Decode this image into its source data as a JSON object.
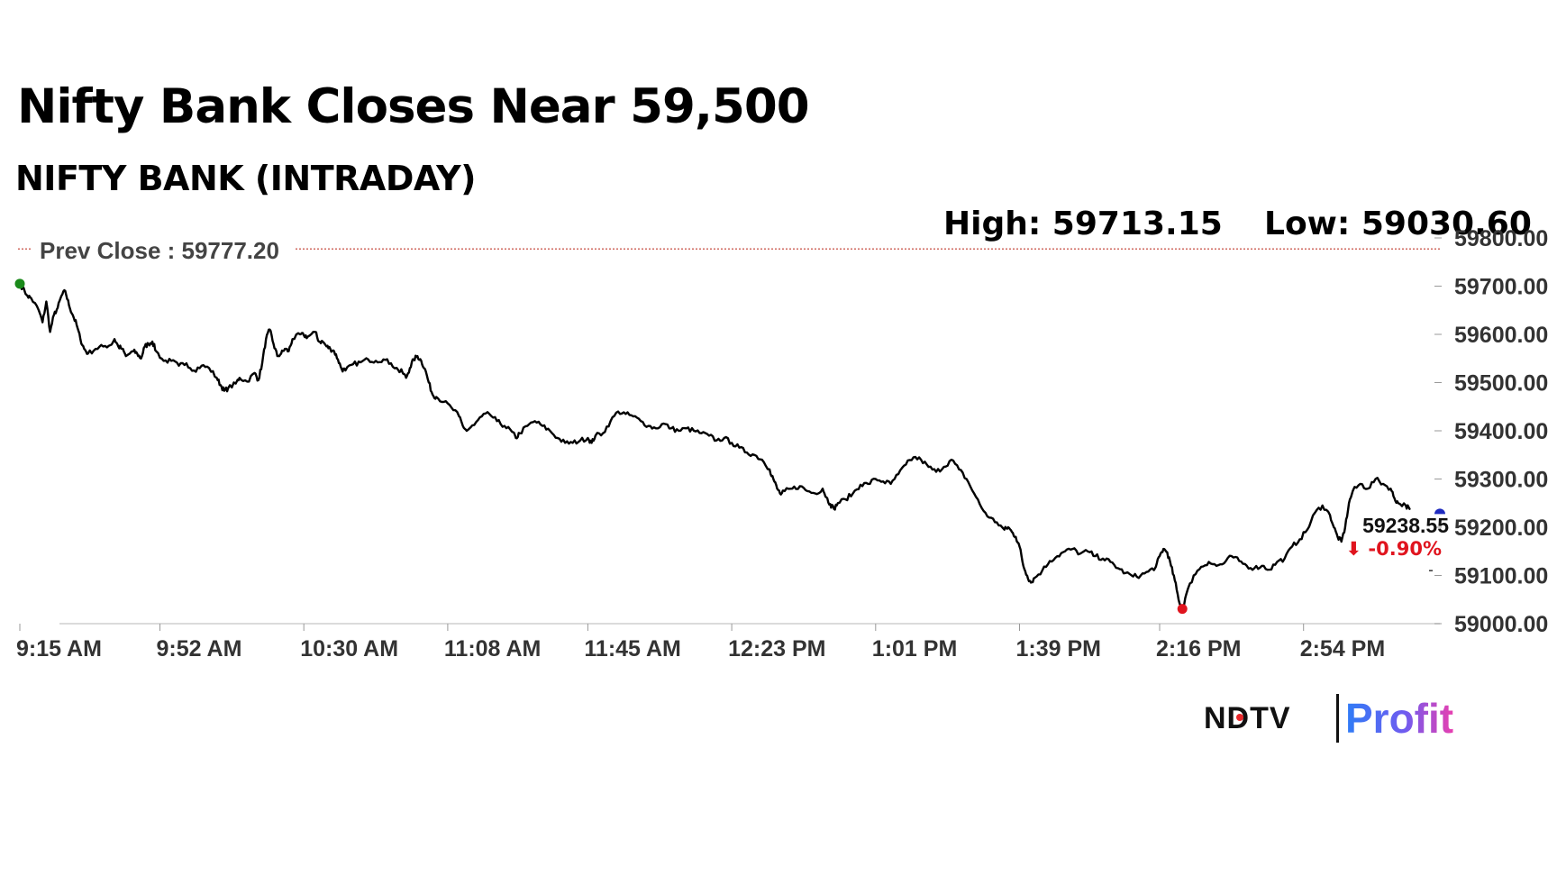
{
  "header": {
    "title": "Nifty Bank Closes Near 59,500",
    "subtitle": "NIFTY BANK (INTRADAY)"
  },
  "stats": {
    "high": "High: 59713.15",
    "low": "Low: 59030.60"
  },
  "prev_close": {
    "label": "Prev Close : 59777.20",
    "value": 59777.2,
    "color": "#c0392b"
  },
  "last": {
    "value_label": "59238.55",
    "change_label": "⬇ -0.90%",
    "change_color": "#e0141e",
    "marker_color": "#1f2bbf"
  },
  "markers": {
    "open_color": "#1a8a1a",
    "low_color": "#e0141e"
  },
  "brand": {
    "ndtv": "NDTV",
    "profit": "Profit"
  },
  "chart_data": {
    "type": "line",
    "title": "Nifty Bank Closes Near 59,500",
    "subtitle": "NIFTY BANK (INTRADAY)",
    "xlabel": "",
    "ylabel": "",
    "grid": false,
    "legend": "none",
    "ylim": [
      59000,
      59800
    ],
    "x_range": [
      0,
      375
    ],
    "y_ticks": [
      59800,
      59700,
      59600,
      59500,
      59400,
      59300,
      59200,
      59100,
      59000
    ],
    "y_tick_labels": [
      "59800.00",
      "59700.00",
      "59600.00",
      "59500.00",
      "59400.00",
      "59300.00",
      "59200.00",
      "59100.00",
      "59000.00"
    ],
    "x_ticks": [
      0,
      37,
      75,
      113,
      150,
      188,
      226,
      264,
      301,
      339
    ],
    "x_tick_labels": [
      "9:15 AM",
      "9:52 AM",
      "10:30 AM",
      "11:08 AM",
      "11:45 AM",
      "12:23 PM",
      "1:01 PM",
      "1:39 PM",
      "2:16 PM",
      "2:54 PM"
    ],
    "series": [
      {
        "name": "NIFTY BANK",
        "points": [
          [
            0,
            59705
          ],
          [
            2,
            59680
          ],
          [
            3,
            59675
          ],
          [
            5,
            59650
          ],
          [
            6,
            59625
          ],
          [
            7,
            59668
          ],
          [
            8,
            59605
          ],
          [
            9,
            59640
          ],
          [
            10,
            59655
          ],
          [
            11,
            59680
          ],
          [
            12,
            59690
          ],
          [
            13,
            59660
          ],
          [
            14,
            59640
          ],
          [
            15,
            59620
          ],
          [
            16,
            59590
          ],
          [
            17,
            59570
          ],
          [
            18,
            59560
          ],
          [
            20,
            59570
          ],
          [
            22,
            59575
          ],
          [
            24,
            59578
          ],
          [
            25,
            59590
          ],
          [
            26,
            59575
          ],
          [
            27,
            59570
          ],
          [
            28,
            59555
          ],
          [
            30,
            59565
          ],
          [
            31,
            59560
          ],
          [
            32,
            59550
          ],
          [
            33,
            59575
          ],
          [
            34,
            59580
          ],
          [
            35,
            59585
          ],
          [
            36,
            59565
          ],
          [
            38,
            59545
          ],
          [
            40,
            59545
          ],
          [
            42,
            59535
          ],
          [
            44,
            59540
          ],
          [
            46,
            59525
          ],
          [
            48,
            59535
          ],
          [
            50,
            59530
          ],
          [
            52,
            59510
          ],
          [
            53,
            59495
          ],
          [
            54,
            59483
          ],
          [
            55,
            59488
          ],
          [
            57,
            59498
          ],
          [
            58,
            59510
          ],
          [
            60,
            59502
          ],
          [
            62,
            59520
          ],
          [
            63,
            59505
          ],
          [
            64,
            59540
          ],
          [
            65,
            59590
          ],
          [
            66,
            59610
          ],
          [
            67,
            59580
          ],
          [
            68,
            59555
          ],
          [
            69,
            59560
          ],
          [
            70,
            59570
          ],
          [
            71,
            59565
          ],
          [
            72,
            59590
          ],
          [
            74,
            59600
          ],
          [
            75,
            59598
          ],
          [
            76,
            59595
          ],
          [
            78,
            59605
          ],
          [
            79,
            59585
          ],
          [
            80,
            59585
          ],
          [
            81,
            59575
          ],
          [
            82,
            59570
          ],
          [
            83,
            59565
          ],
          [
            84,
            59548
          ],
          [
            85,
            59528
          ],
          [
            86,
            59525
          ],
          [
            88,
            59538
          ],
          [
            90,
            59542
          ],
          [
            92,
            59548
          ],
          [
            94,
            59545
          ],
          [
            96,
            59548
          ],
          [
            98,
            59540
          ],
          [
            100,
            59525
          ],
          [
            101,
            59522
          ],
          [
            102,
            59510
          ],
          [
            103,
            59530
          ],
          [
            104,
            59548
          ],
          [
            105,
            59555
          ],
          [
            106,
            59545
          ],
          [
            107,
            59528
          ],
          [
            108,
            59500
          ],
          [
            109,
            59475
          ],
          [
            110,
            59470
          ],
          [
            112,
            59460
          ],
          [
            114,
            59448
          ],
          [
            116,
            59430
          ],
          [
            117,
            59410
          ],
          [
            118,
            59400
          ],
          [
            120,
            59412
          ],
          [
            122,
            59430
          ],
          [
            124,
            59435
          ],
          [
            126,
            59420
          ],
          [
            128,
            59410
          ],
          [
            130,
            59398
          ],
          [
            131,
            59385
          ],
          [
            132,
            59395
          ],
          [
            134,
            59410
          ],
          [
            136,
            59420
          ],
          [
            138,
            59410
          ],
          [
            140,
            59400
          ],
          [
            142,
            59385
          ],
          [
            144,
            59375
          ],
          [
            146,
            59375
          ],
          [
            148,
            59380
          ],
          [
            150,
            59385
          ],
          [
            151,
            59375
          ],
          [
            152,
            59390
          ],
          [
            154,
            59395
          ],
          [
            156,
            59420
          ],
          [
            158,
            59440
          ],
          [
            160,
            59435
          ],
          [
            162,
            59430
          ],
          [
            164,
            59420
          ],
          [
            166,
            59410
          ],
          [
            168,
            59405
          ],
          [
            170,
            59415
          ],
          [
            172,
            59405
          ],
          [
            174,
            59400
          ],
          [
            176,
            59405
          ],
          [
            178,
            59400
          ],
          [
            180,
            59395
          ],
          [
            182,
            59390
          ],
          [
            184,
            59380
          ],
          [
            186,
            59385
          ],
          [
            188,
            59375
          ],
          [
            190,
            59365
          ],
          [
            192,
            59355
          ],
          [
            194,
            59350
          ],
          [
            196,
            59340
          ],
          [
            198,
            59320
          ],
          [
            199,
            59300
          ],
          [
            200,
            59280
          ],
          [
            201,
            59268
          ],
          [
            202,
            59275
          ],
          [
            204,
            59280
          ],
          [
            206,
            59285
          ],
          [
            208,
            59275
          ],
          [
            210,
            59270
          ],
          [
            212,
            59280
          ],
          [
            213,
            59262
          ],
          [
            214,
            59248
          ],
          [
            215,
            59238
          ],
          [
            216,
            59250
          ],
          [
            218,
            59258
          ],
          [
            220,
            59270
          ],
          [
            222,
            59288
          ],
          [
            224,
            59290
          ],
          [
            226,
            59300
          ],
          [
            228,
            59295
          ],
          [
            230,
            59290
          ],
          [
            232,
            59310
          ],
          [
            234,
            59330
          ],
          [
            236,
            59345
          ],
          [
            238,
            59340
          ],
          [
            240,
            59325
          ],
          [
            242,
            59315
          ],
          [
            244,
            59325
          ],
          [
            246,
            59340
          ],
          [
            248,
            59320
          ],
          [
            250,
            59300
          ],
          [
            252,
            59270
          ],
          [
            254,
            59240
          ],
          [
            256,
            59220
          ],
          [
            258,
            59210
          ],
          [
            260,
            59195
          ],
          [
            261,
            59200
          ],
          [
            262,
            59190
          ],
          [
            263,
            59180
          ],
          [
            264,
            59160
          ],
          [
            265,
            59120
          ],
          [
            266,
            59100
          ],
          [
            267,
            59085
          ],
          [
            268,
            59095
          ],
          [
            270,
            59110
          ],
          [
            272,
            59130
          ],
          [
            274,
            59140
          ],
          [
            276,
            59150
          ],
          [
            278,
            59155
          ],
          [
            280,
            59145
          ],
          [
            282,
            59150
          ],
          [
            284,
            59140
          ],
          [
            286,
            59135
          ],
          [
            288,
            59128
          ],
          [
            290,
            59115
          ],
          [
            292,
            59105
          ],
          [
            294,
            59098
          ],
          [
            296,
            59100
          ],
          [
            298,
            59108
          ],
          [
            300,
            59118
          ],
          [
            301,
            59140
          ],
          [
            302,
            59155
          ],
          [
            303,
            59148
          ],
          [
            304,
            59120
          ],
          [
            305,
            59090
          ],
          [
            306,
            59050
          ],
          [
            307,
            59030
          ],
          [
            308,
            59060
          ],
          [
            310,
            59100
          ],
          [
            312,
            59118
          ],
          [
            314,
            59128
          ],
          [
            316,
            59120
          ],
          [
            318,
            59125
          ],
          [
            320,
            59140
          ],
          [
            322,
            59130
          ],
          [
            324,
            59120
          ],
          [
            326,
            59115
          ],
          [
            328,
            59120
          ],
          [
            330,
            59112
          ],
          [
            332,
            59128
          ],
          [
            334,
            59135
          ],
          [
            336,
            59160
          ],
          [
            338,
            59175
          ],
          [
            340,
            59195
          ],
          [
            342,
            59230
          ],
          [
            344,
            59245
          ],
          [
            346,
            59225
          ],
          [
            347,
            59200
          ],
          [
            348,
            59180
          ],
          [
            349,
            59170
          ],
          [
            350,
            59200
          ],
          [
            351,
            59250
          ],
          [
            352,
            59275
          ],
          [
            354,
            59290
          ],
          [
            356,
            59280
          ],
          [
            358,
            59300
          ],
          [
            360,
            59290
          ],
          [
            362,
            59280
          ],
          [
            363,
            59260
          ],
          [
            364,
            59250
          ],
          [
            366,
            59245
          ],
          [
            367,
            59238
          ]
        ]
      }
    ],
    "markers": [
      {
        "label": "open",
        "x": 0,
        "y": 59705
      },
      {
        "label": "low",
        "x": 307,
        "y": 59030.6
      }
    ],
    "last_value": {
      "x": 375,
      "y": 59238.55
    },
    "reference_line": {
      "label": "Prev Close : 59777.20",
      "y": 59777.2
    }
  }
}
